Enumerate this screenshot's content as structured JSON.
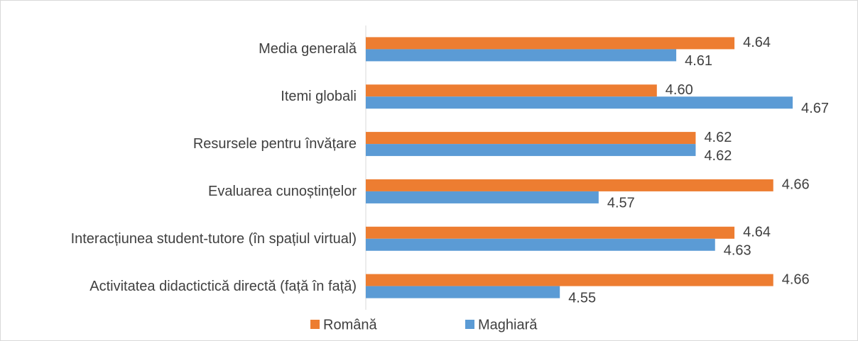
{
  "chart_data": {
    "type": "hbar",
    "categories": [
      "Media generală",
      "Itemi globali",
      "Resursele pentru învățare",
      "Evaluarea cunoștințelor",
      "Interacțiunea student-tutore (în spațiul virtual)",
      "Activitatea didactictică directă (față în față)"
    ],
    "series": [
      {
        "name": "Română",
        "color": "#ed7d31",
        "values": [
          4.64,
          4.6,
          4.62,
          4.66,
          4.64,
          4.66
        ],
        "value_labels": [
          "4.64",
          "4.60",
          "4.62",
          "4.66",
          "4.64",
          "4.66"
        ]
      },
      {
        "name": "Maghiară",
        "color": "#5b9bd5",
        "values": [
          4.61,
          4.67,
          4.62,
          4.57,
          4.63,
          4.55
        ],
        "value_labels": [
          "4.61",
          "4.67",
          "4.62",
          "4.57",
          "4.63",
          "4.55"
        ]
      }
    ],
    "xlim": [
      4.45,
      4.7
    ],
    "legend": "bottom"
  }
}
